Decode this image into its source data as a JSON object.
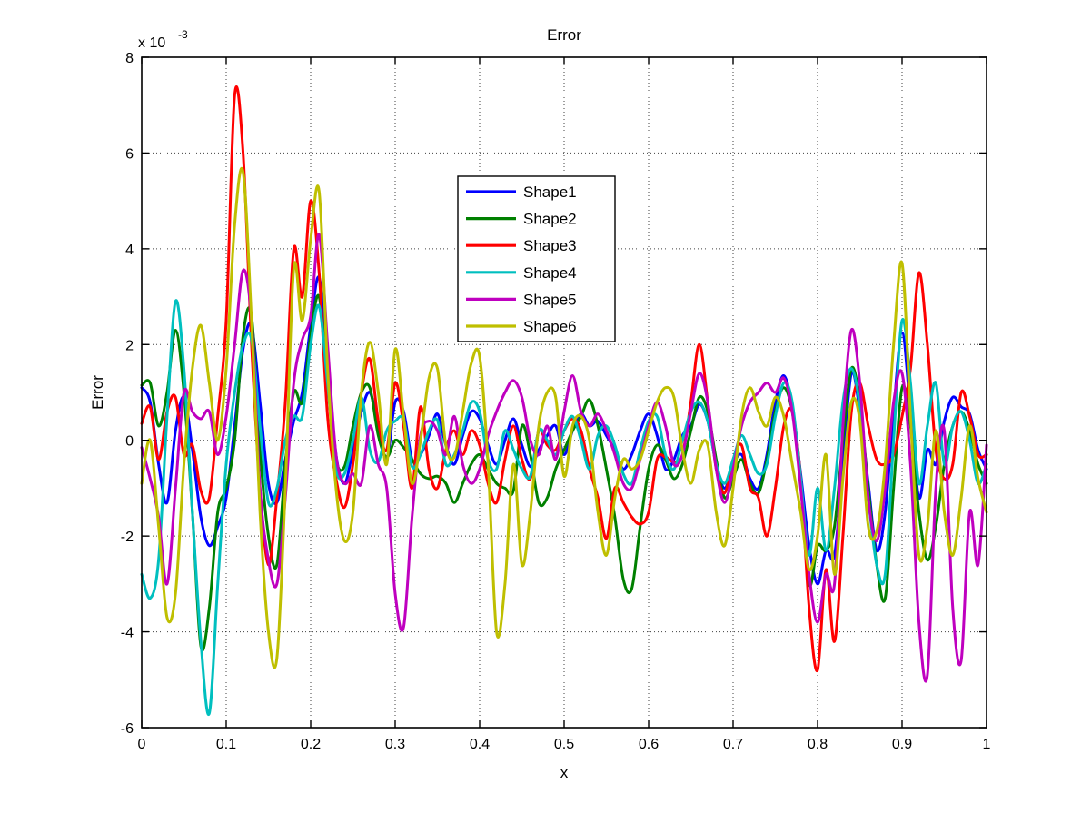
{
  "figure": {
    "title": "Error",
    "xlabel": "x",
    "ylabel": "Error",
    "offset_base": "x 10",
    "offset_exponent": "-3",
    "background_color": "#ffffff",
    "axis_color": "#000000"
  },
  "chart_data": {
    "type": "line",
    "title": "Error",
    "xlabel": "x",
    "ylabel": "Error",
    "y_scale_factor": "1e-3",
    "xlim": [
      0,
      1
    ],
    "ylim_scaled": [
      -6,
      8
    ],
    "grid": true,
    "legend_position": "upper-center",
    "x_ticks": [
      0,
      0.1,
      0.2,
      0.3,
      0.4,
      0.5,
      0.6,
      0.7,
      0.8,
      0.9,
      1
    ],
    "x_ticklabels": [
      "0",
      "0.1",
      "0.2",
      "0.3",
      "0.4",
      "0.5",
      "0.6",
      "0.7",
      "0.8",
      "0.9",
      "1"
    ],
    "y_ticks_scaled": [
      -6,
      -4,
      -2,
      0,
      2,
      4,
      6,
      8
    ],
    "y_ticklabels": [
      "-6",
      "-4",
      "-2",
      "0",
      "2",
      "4",
      "6",
      "8"
    ],
    "x_start": 0,
    "x_step": 0.01,
    "series": [
      {
        "name": "Shape1",
        "color": "#0000ff",
        "values": [
          1.1,
          0.8,
          -0.5,
          -1.3,
          0.2,
          0.9,
          -0.2,
          -1.6,
          -2.2,
          -1.8,
          -1.2,
          0.3,
          1.9,
          2.4,
          0.8,
          -0.9,
          -1.3,
          -0.4,
          0.4,
          1.0,
          2.4,
          3.4,
          1.6,
          -0.3,
          -0.9,
          -0.2,
          0.6,
          1.0,
          0.3,
          -0.4,
          0.8,
          0.6,
          -0.4,
          -0.3,
          0.1,
          0.55,
          -0.1,
          -0.5,
          0.1,
          0.6,
          0.45,
          -0.1,
          -0.5,
          0.0,
          0.45,
          -0.1,
          -0.55,
          -0.2,
          0.1,
          0.3,
          -0.3,
          0.2,
          0.55,
          0.3,
          0.4,
          0.1,
          -0.2,
          -0.6,
          -0.3,
          0.2,
          0.55,
          0.1,
          -0.6,
          -0.4,
          0.1,
          0.3,
          0.75,
          0.4,
          -0.5,
          -1.0,
          -0.5,
          -0.3,
          -0.8,
          -1.0,
          -0.3,
          0.8,
          1.35,
          0.7,
          -0.7,
          -2.2,
          -3.0,
          -2.3,
          -2.4,
          -0.5,
          1.4,
          0.6,
          -0.9,
          -2.3,
          -1.5,
          0.6,
          2.25,
          0.6,
          -1.2,
          -0.2,
          -0.5,
          0.4,
          0.9,
          0.7,
          0.55,
          -0.2,
          -0.6
        ]
      },
      {
        "name": "Shape2",
        "color": "#008000",
        "values": [
          1.15,
          1.2,
          0.3,
          1.0,
          2.3,
          1.0,
          -1.5,
          -4.3,
          -3.5,
          -1.5,
          -1.0,
          0.0,
          2.2,
          2.6,
          -0.2,
          -2.0,
          -2.6,
          -0.5,
          1.0,
          0.8,
          2.2,
          3.0,
          1.2,
          -0.4,
          -0.55,
          0.3,
          1.0,
          1.1,
          0.1,
          -0.35,
          0.0,
          -0.15,
          -0.4,
          -0.7,
          -0.8,
          -0.75,
          -0.9,
          -1.3,
          -0.9,
          -0.5,
          -0.3,
          -0.6,
          -0.9,
          -1.0,
          -1.05,
          0.3,
          -0.3,
          -1.3,
          -1.2,
          -0.6,
          -0.2,
          0.2,
          0.5,
          0.85,
          0.3,
          -0.6,
          -1.6,
          -2.9,
          -3.1,
          -1.8,
          -0.6,
          -0.1,
          -0.4,
          -0.8,
          -0.5,
          0.2,
          0.9,
          0.6,
          -0.4,
          -1.2,
          -0.8,
          -0.4,
          -0.9,
          -1.1,
          -0.4,
          0.6,
          1.1,
          0.6,
          -0.8,
          -3.0,
          -2.2,
          -2.3,
          -1.8,
          0.0,
          1.5,
          0.8,
          -1.0,
          -2.6,
          -3.3,
          -1.0,
          1.1,
          0.3,
          -1.5,
          -2.5,
          -1.8,
          -0.5,
          0.3,
          0.6,
          0.2,
          -0.5,
          -0.9
        ]
      },
      {
        "name": "Shape3",
        "color": "#ff0000",
        "values": [
          0.35,
          0.7,
          -0.4,
          0.6,
          0.9,
          -0.3,
          -0.1,
          -1.05,
          -1.2,
          0.5,
          2.5,
          7.2,
          6.0,
          2.0,
          -1.0,
          -2.6,
          -1.2,
          0.8,
          4.0,
          3.0,
          5.0,
          3.5,
          0.5,
          -0.8,
          -1.4,
          -0.5,
          1.0,
          1.7,
          0.4,
          -0.2,
          1.2,
          0.3,
          -1.0,
          0.7,
          -0.6,
          -1.0,
          -0.2,
          0.2,
          -0.3,
          0.2,
          -0.1,
          -0.9,
          -1.3,
          -0.4,
          0.3,
          -0.4,
          -0.8,
          0.2,
          -0.1,
          -0.2,
          0.2,
          0.45,
          0.2,
          -0.6,
          -1.2,
          -2.05,
          -1.0,
          -1.3,
          -1.6,
          -1.75,
          -1.5,
          -0.4,
          -0.35,
          -0.45,
          -0.3,
          0.8,
          2.0,
          0.8,
          -0.6,
          -1.1,
          -0.4,
          -0.1,
          -1.0,
          -1.2,
          -2.0,
          -1.0,
          0.3,
          0.6,
          -0.8,
          -3.5,
          -4.8,
          -2.7,
          -4.2,
          -2.0,
          0.6,
          1.2,
          0.3,
          -0.4,
          -0.5,
          -0.3,
          0.5,
          1.5,
          3.5,
          2.0,
          -0.2,
          -0.8,
          -0.5,
          1.0,
          0.5,
          -0.3,
          -0.3
        ]
      },
      {
        "name": "Shape4",
        "color": "#00bfbf",
        "values": [
          -2.8,
          -3.3,
          -2.5,
          0.5,
          2.9,
          1.5,
          -1.5,
          -4.2,
          -5.7,
          -3.0,
          -0.5,
          1.0,
          2.0,
          2.1,
          0.3,
          -1.3,
          -1.0,
          0.0,
          0.5,
          0.5,
          2.0,
          2.8,
          1.2,
          -0.6,
          -0.7,
          0.0,
          0.9,
          -0.2,
          -0.45,
          0.2,
          0.4,
          0.43,
          -0.55,
          -0.3,
          0.2,
          0.42,
          -0.5,
          -0.3,
          0.2,
          0.79,
          0.6,
          -0.4,
          -0.6,
          0.2,
          -0.2,
          -0.6,
          -0.75,
          0.2,
          0.0,
          -0.3,
          0.2,
          0.5,
          0.0,
          -0.6,
          0.1,
          0.3,
          -0.1,
          -0.7,
          -0.9,
          -0.2,
          0.4,
          0.5,
          -0.3,
          -0.6,
          0.0,
          0.6,
          0.8,
          0.4,
          -0.5,
          -0.9,
          -0.4,
          0.1,
          -0.3,
          -0.7,
          -0.5,
          0.5,
          1.2,
          0.8,
          -0.8,
          -2.4,
          -1.0,
          -2.3,
          -1.0,
          0.8,
          1.5,
          0.7,
          -1.2,
          -2.6,
          -2.8,
          0.0,
          2.5,
          1.2,
          -0.9,
          0.3,
          1.2,
          -0.5,
          0.3,
          0.6,
          0.0,
          -0.9,
          -0.5
        ]
      },
      {
        "name": "Shape5",
        "color": "#bf00bf",
        "values": [
          -0.15,
          -0.8,
          -1.6,
          -3.0,
          -1.0,
          1.0,
          0.6,
          0.45,
          0.6,
          -0.3,
          0.5,
          2.0,
          3.55,
          2.5,
          -1.0,
          -2.5,
          -3.0,
          -1.2,
          1.2,
          2.1,
          2.6,
          4.3,
          2.0,
          -0.3,
          -0.9,
          -0.7,
          -0.9,
          0.3,
          -0.5,
          -1.0,
          -3.2,
          -3.9,
          -1.6,
          0.1,
          0.4,
          0.2,
          -0.3,
          0.5,
          -0.5,
          -0.9,
          -0.6,
          0.1,
          0.6,
          1.0,
          1.25,
          0.9,
          0.0,
          -0.3,
          0.3,
          -0.4,
          0.6,
          1.35,
          0.6,
          0.3,
          0.55,
          0.2,
          -0.3,
          -0.9,
          -1.0,
          -0.4,
          0.3,
          0.8,
          0.3,
          -0.5,
          -0.3,
          0.6,
          1.4,
          0.8,
          -0.6,
          -1.3,
          -0.6,
          0.3,
          0.8,
          1.0,
          1.2,
          1.0,
          1.3,
          0.6,
          -1.0,
          -2.8,
          -3.8,
          -2.8,
          -3.0,
          0.3,
          2.3,
          1.2,
          -1.2,
          -2.1,
          -1.0,
          0.8,
          1.4,
          -0.5,
          -3.8,
          -4.9,
          -1.0,
          0.2,
          -3.5,
          -4.6,
          -1.5,
          -2.6,
          -0.1
        ]
      },
      {
        "name": "Shape6",
        "color": "#bfbf00",
        "values": [
          -0.9,
          0.0,
          -1.8,
          -3.7,
          -3.2,
          -0.5,
          1.5,
          2.4,
          1.2,
          0.0,
          1.5,
          4.5,
          5.6,
          2.5,
          -1.5,
          -4.0,
          -4.55,
          -1.0,
          3.6,
          2.5,
          4.2,
          5.2,
          1.5,
          -1.0,
          -2.1,
          -1.5,
          1.0,
          2.05,
          1.0,
          -0.5,
          1.9,
          0.5,
          -0.9,
          0.0,
          1.3,
          1.5,
          -0.1,
          -0.35,
          0.6,
          1.6,
          1.75,
          -0.5,
          -4.0,
          -3.0,
          -0.5,
          -2.6,
          -1.5,
          0.3,
          1.0,
          0.9,
          -0.75,
          0.3,
          0.5,
          0.0,
          -1.5,
          -2.4,
          -1.2,
          -0.4,
          -0.6,
          -0.4,
          0.2,
          0.8,
          1.1,
          0.9,
          -0.2,
          -0.9,
          -0.2,
          -0.1,
          -1.5,
          -2.2,
          -1.0,
          0.5,
          1.1,
          0.6,
          0.3,
          0.9,
          0.5,
          -0.5,
          -1.5,
          -2.7,
          -2.0,
          -0.3,
          -2.8,
          -0.8,
          0.8,
          0.4,
          -1.8,
          -1.9,
          -0.5,
          2.0,
          3.7,
          0.5,
          -2.4,
          -1.8,
          0.2,
          -1.5,
          -2.4,
          -1.2,
          0.3,
          -0.8,
          -1.5
        ]
      }
    ]
  }
}
